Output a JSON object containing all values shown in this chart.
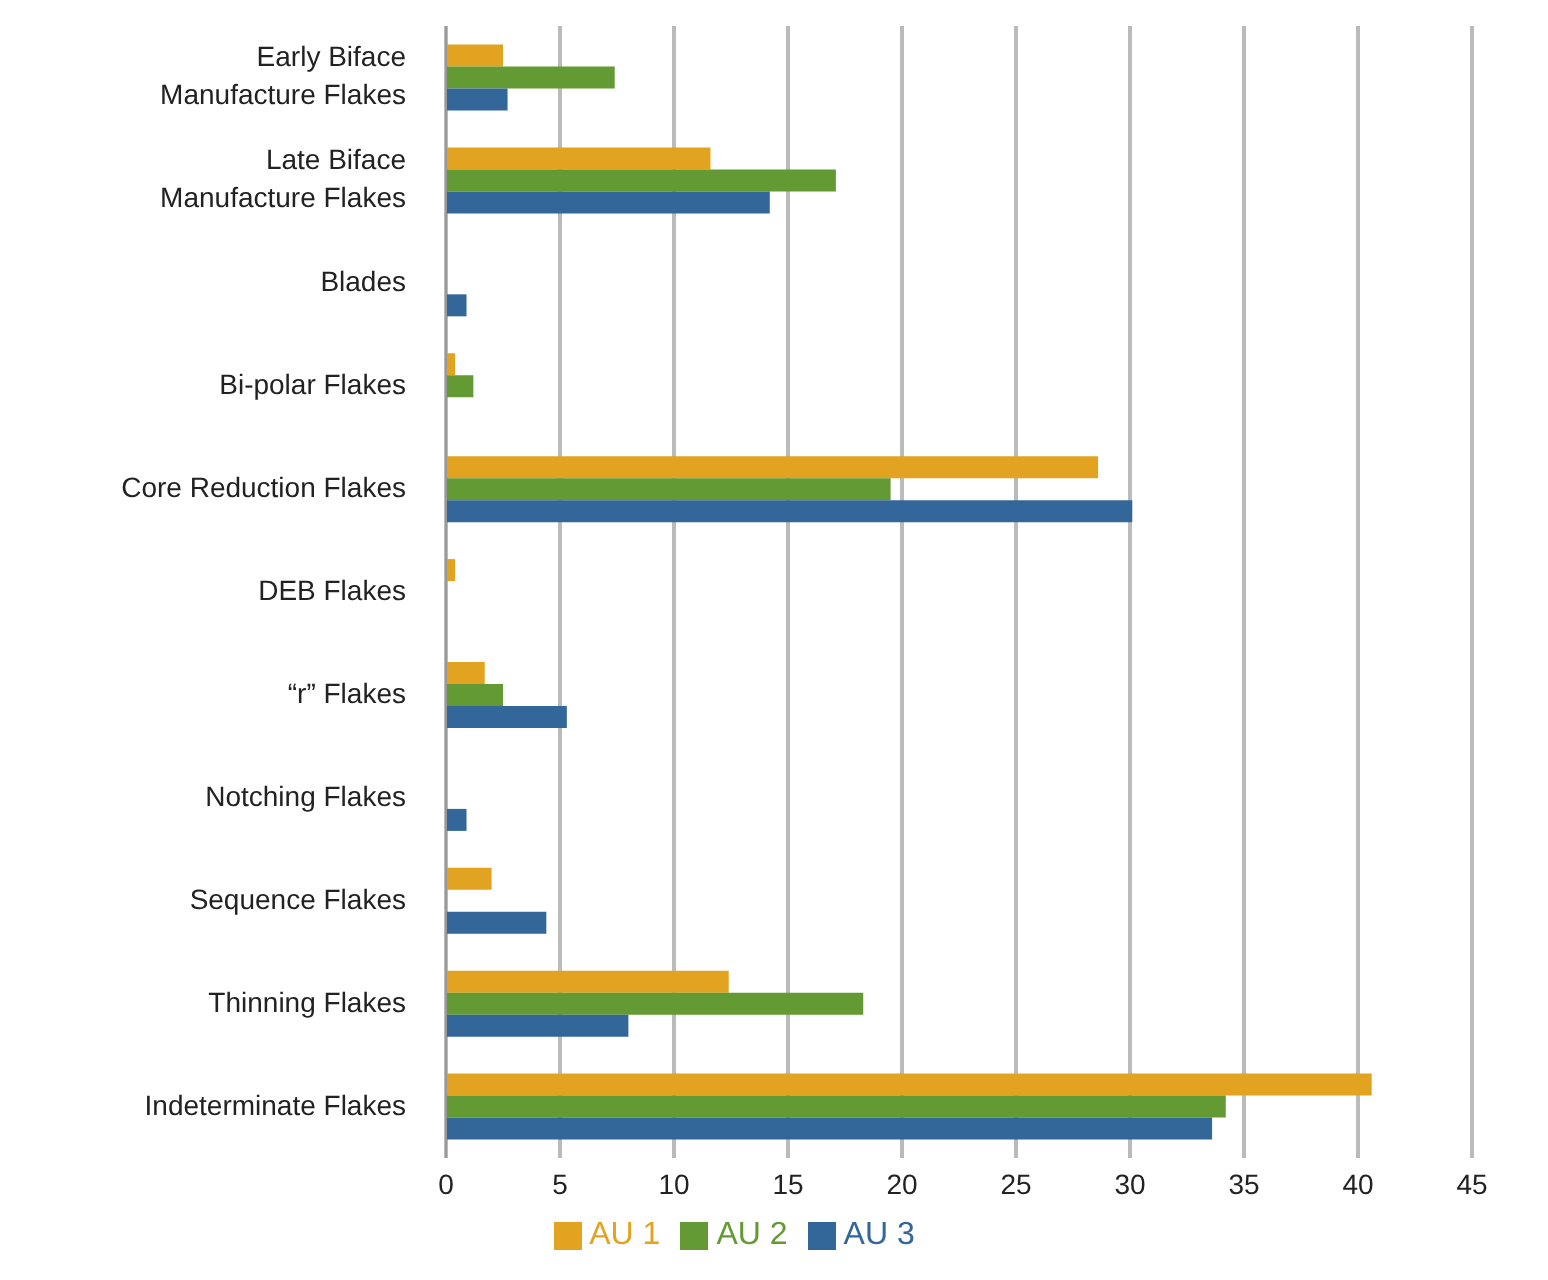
{
  "chart_data": {
    "type": "bar",
    "orientation": "horizontal",
    "categories": [
      "Early Biface\nManufacture Flakes",
      "Late Biface\nManufacture Flakes",
      "Blades",
      "Bi-polar Flakes",
      "Core Reduction Flakes",
      "DEB Flakes",
      "“r” Flakes",
      "Notching Flakes",
      "Sequence Flakes",
      "Thinning Flakes",
      "Indeterminate Flakes"
    ],
    "series": [
      {
        "name": "AU 1",
        "color": "#e2a420",
        "values": [
          2.5,
          11.6,
          null,
          0.4,
          28.6,
          0.4,
          1.7,
          null,
          2.0,
          12.4,
          40.6
        ]
      },
      {
        "name": "AU 2",
        "color": "#649a33",
        "values": [
          7.4,
          17.1,
          null,
          1.2,
          19.5,
          null,
          2.5,
          null,
          null,
          18.3,
          34.2
        ]
      },
      {
        "name": "AU 3",
        "color": "#336699",
        "values": [
          2.7,
          14.2,
          0.9,
          null,
          30.1,
          null,
          5.3,
          0.9,
          4.4,
          8.0,
          33.6
        ]
      }
    ],
    "xlim": [
      0,
      45
    ],
    "xticks": [
      0,
      5,
      10,
      15,
      20,
      25,
      30,
      35,
      40,
      45
    ],
    "grid": "x",
    "legend": "bottom"
  }
}
